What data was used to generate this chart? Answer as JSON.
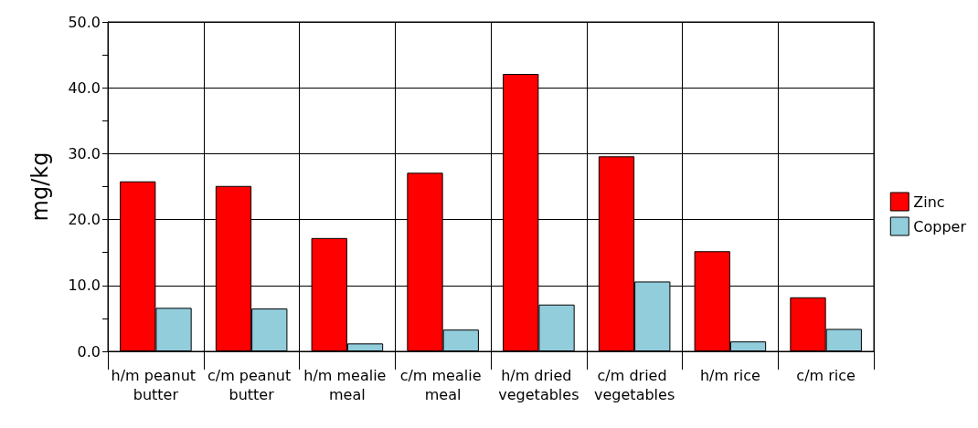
{
  "chart_data": {
    "type": "bar",
    "ylabel": "mg/kg",
    "categories": [
      "h/m peanut butter",
      "c/m peanut butter",
      "h/m mealie meal",
      "c/m mealie meal",
      "h/m dried vegetables",
      "c/m dried vegetables",
      "h/m rice",
      "c/m rice"
    ],
    "series": [
      {
        "name": "Zinc",
        "color": "#ff0000",
        "values": [
          25.8,
          25.1,
          17.2,
          27.1,
          42.1,
          29.6,
          15.2,
          8.2
        ]
      },
      {
        "name": "Copper",
        "color": "#92cddc",
        "values": [
          6.6,
          6.5,
          1.2,
          3.3,
          7.1,
          10.6,
          1.5,
          3.4
        ]
      }
    ],
    "ylim": [
      0,
      50
    ],
    "yticks": [
      {
        "value": 0,
        "label": "0.0"
      },
      {
        "value": 5,
        "label": null
      },
      {
        "value": 10,
        "label": "10.0"
      },
      {
        "value": 15,
        "label": null
      },
      {
        "value": 20,
        "label": "20.0"
      },
      {
        "value": 25,
        "label": null
      },
      {
        "value": 30,
        "label": "30.0"
      },
      {
        "value": 35,
        "label": null
      },
      {
        "value": 40,
        "label": "40.0"
      },
      {
        "value": 45,
        "label": null
      },
      {
        "value": 50,
        "label": "50.0"
      }
    ],
    "grid": true,
    "legend": "right"
  }
}
